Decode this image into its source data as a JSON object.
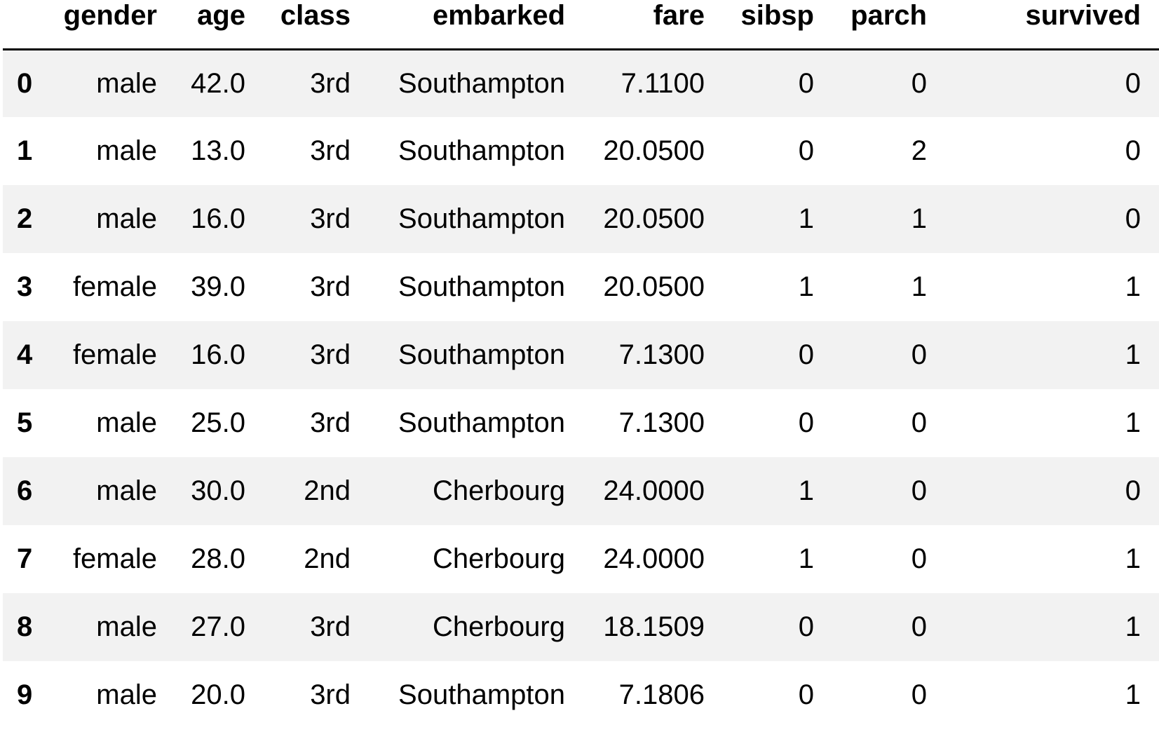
{
  "table": {
    "columns": [
      "gender",
      "age",
      "class",
      "embarked",
      "fare",
      "sibsp",
      "parch",
      "survived"
    ],
    "rows": [
      {
        "index": "0",
        "cells": [
          "male",
          "42.0",
          "3rd",
          "Southampton",
          "7.1100",
          "0",
          "0",
          "0"
        ]
      },
      {
        "index": "1",
        "cells": [
          "male",
          "13.0",
          "3rd",
          "Southampton",
          "20.0500",
          "0",
          "2",
          "0"
        ]
      },
      {
        "index": "2",
        "cells": [
          "male",
          "16.0",
          "3rd",
          "Southampton",
          "20.0500",
          "1",
          "1",
          "0"
        ]
      },
      {
        "index": "3",
        "cells": [
          "female",
          "39.0",
          "3rd",
          "Southampton",
          "20.0500",
          "1",
          "1",
          "1"
        ]
      },
      {
        "index": "4",
        "cells": [
          "female",
          "16.0",
          "3rd",
          "Southampton",
          "7.1300",
          "0",
          "0",
          "1"
        ]
      },
      {
        "index": "5",
        "cells": [
          "male",
          "25.0",
          "3rd",
          "Southampton",
          "7.1300",
          "0",
          "0",
          "1"
        ]
      },
      {
        "index": "6",
        "cells": [
          "male",
          "30.0",
          "2nd",
          "Cherbourg",
          "24.0000",
          "1",
          "0",
          "0"
        ]
      },
      {
        "index": "7",
        "cells": [
          "female",
          "28.0",
          "2nd",
          "Cherbourg",
          "24.0000",
          "1",
          "0",
          "1"
        ]
      },
      {
        "index": "8",
        "cells": [
          "male",
          "27.0",
          "3rd",
          "Cherbourg",
          "18.1509",
          "0",
          "0",
          "1"
        ]
      },
      {
        "index": "9",
        "cells": [
          "male",
          "20.0",
          "3rd",
          "Southampton",
          "7.1806",
          "0",
          "0",
          "1"
        ]
      }
    ]
  },
  "colors": {
    "stripe": "#f2f2f2",
    "background": "#ffffff",
    "text": "#000000",
    "header_rule": "#000000"
  }
}
